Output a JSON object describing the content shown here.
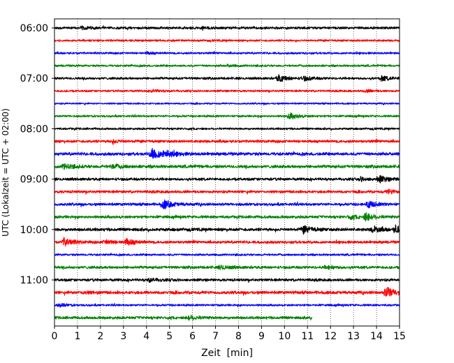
{
  "chart_data": {
    "type": "line",
    "title": "",
    "xlabel": "Zeit  [min]",
    "ylabel": "UTC (Lokalzeit = UTC + 02:00)",
    "xlim": [
      0,
      15
    ],
    "x_ticks": [
      "0",
      "1",
      "2",
      "3",
      "4",
      "5",
      "6",
      "7",
      "8",
      "9",
      "10",
      "11",
      "12",
      "13",
      "14",
      "15"
    ],
    "y_tick_labels": [
      "06:00",
      "07:00",
      "08:00",
      "09:00",
      "10:00",
      "11:00"
    ],
    "grid": "vertical dotted",
    "trace_interval_minutes": 15,
    "row_color_cycle": [
      "#000000",
      "#ff0000",
      "#0000ff",
      "#008000"
    ],
    "rows": [
      {
        "time": "06:00",
        "color": "#000000",
        "base_amplitude": 0.35,
        "events": [
          {
            "t": 1.2,
            "amp": 0.35
          },
          {
            "t": 6.4,
            "amp": 0.25
          }
        ]
      },
      {
        "time": "06:15",
        "color": "#ff0000",
        "base_amplitude": 0.3,
        "events": []
      },
      {
        "time": "06:30",
        "color": "#0000ff",
        "base_amplitude": 0.3,
        "events": [
          {
            "t": 4.0,
            "amp": 0.25
          }
        ]
      },
      {
        "time": "06:45",
        "color": "#008000",
        "base_amplitude": 0.3,
        "events": [
          {
            "t": 7.5,
            "amp": 0.2
          }
        ]
      },
      {
        "time": "07:00",
        "color": "#000000",
        "base_amplitude": 0.35,
        "events": [
          {
            "t": 9.7,
            "amp": 0.9
          },
          {
            "t": 10.8,
            "amp": 0.5
          },
          {
            "t": 14.2,
            "amp": 0.6
          }
        ]
      },
      {
        "time": "07:15",
        "color": "#ff0000",
        "base_amplitude": 0.3,
        "events": [
          {
            "t": 4.2,
            "amp": 0.3
          },
          {
            "t": 13.5,
            "amp": 0.3
          }
        ]
      },
      {
        "time": "07:30",
        "color": "#0000ff",
        "base_amplitude": 0.25,
        "events": []
      },
      {
        "time": "07:45",
        "color": "#008000",
        "base_amplitude": 0.3,
        "events": [
          {
            "t": 10.2,
            "amp": 0.8
          }
        ]
      },
      {
        "time": "08:00",
        "color": "#000000",
        "base_amplitude": 0.3,
        "events": []
      },
      {
        "time": "08:15",
        "color": "#ff0000",
        "base_amplitude": 0.4,
        "events": [
          {
            "t": 2.5,
            "amp": 0.35
          }
        ]
      },
      {
        "time": "08:30",
        "color": "#0000ff",
        "base_amplitude": 0.45,
        "events": [
          {
            "t": 4.2,
            "amp": 1.6
          },
          {
            "t": 4.8,
            "amp": 0.8
          }
        ]
      },
      {
        "time": "08:45",
        "color": "#008000",
        "base_amplitude": 0.45,
        "events": [
          {
            "t": 0.4,
            "amp": 0.6
          },
          {
            "t": 2.5,
            "amp": 0.5
          }
        ]
      },
      {
        "time": "09:00",
        "color": "#000000",
        "base_amplitude": 0.4,
        "events": [
          {
            "t": 14.1,
            "amp": 0.8
          },
          {
            "t": 13.3,
            "amp": 0.4
          }
        ]
      },
      {
        "time": "09:15",
        "color": "#ff0000",
        "base_amplitude": 0.4,
        "events": [
          {
            "t": 14.5,
            "amp": 0.5
          }
        ]
      },
      {
        "time": "09:30",
        "color": "#0000ff",
        "base_amplitude": 0.4,
        "events": [
          {
            "t": 4.7,
            "amp": 1.2
          },
          {
            "t": 13.6,
            "amp": 0.8
          }
        ]
      },
      {
        "time": "09:45",
        "color": "#008000",
        "base_amplitude": 0.4,
        "events": [
          {
            "t": 13.5,
            "amp": 1.0
          },
          {
            "t": 12.8,
            "amp": 0.5
          }
        ]
      },
      {
        "time": "10:00",
        "color": "#000000",
        "base_amplitude": 0.45,
        "events": [
          {
            "t": 10.8,
            "amp": 0.9
          },
          {
            "t": 13.8,
            "amp": 0.8
          },
          {
            "t": 14.8,
            "amp": 0.9
          }
        ]
      },
      {
        "time": "10:15",
        "color": "#ff0000",
        "base_amplitude": 0.4,
        "events": [
          {
            "t": 0.4,
            "amp": 1.0
          },
          {
            "t": 3.1,
            "amp": 0.8
          },
          {
            "t": 2.2,
            "amp": 0.5
          }
        ]
      },
      {
        "time": "10:30",
        "color": "#0000ff",
        "base_amplitude": 0.3,
        "events": []
      },
      {
        "time": "10:45",
        "color": "#008000",
        "base_amplitude": 0.4,
        "events": [
          {
            "t": 7.2,
            "amp": 0.5
          },
          {
            "t": 11.8,
            "amp": 0.4
          }
        ]
      },
      {
        "time": "11:00",
        "color": "#000000",
        "base_amplitude": 0.4,
        "events": [
          {
            "t": 4.1,
            "amp": 0.4
          }
        ]
      },
      {
        "time": "11:15",
        "color": "#ff0000",
        "base_amplitude": 0.45,
        "events": [
          {
            "t": 14.4,
            "amp": 1.4
          },
          {
            "t": 1.2,
            "amp": 0.3
          }
        ]
      },
      {
        "time": "11:30",
        "color": "#0000ff",
        "base_amplitude": 0.3,
        "events": [
          {
            "t": 0.2,
            "amp": 0.4
          }
        ]
      },
      {
        "time": "11:45",
        "color": "#008000",
        "base_amplitude": 0.4,
        "events": [
          {
            "t": 5.8,
            "amp": 0.6
          }
        ],
        "end_minute": 11.2
      }
    ]
  }
}
